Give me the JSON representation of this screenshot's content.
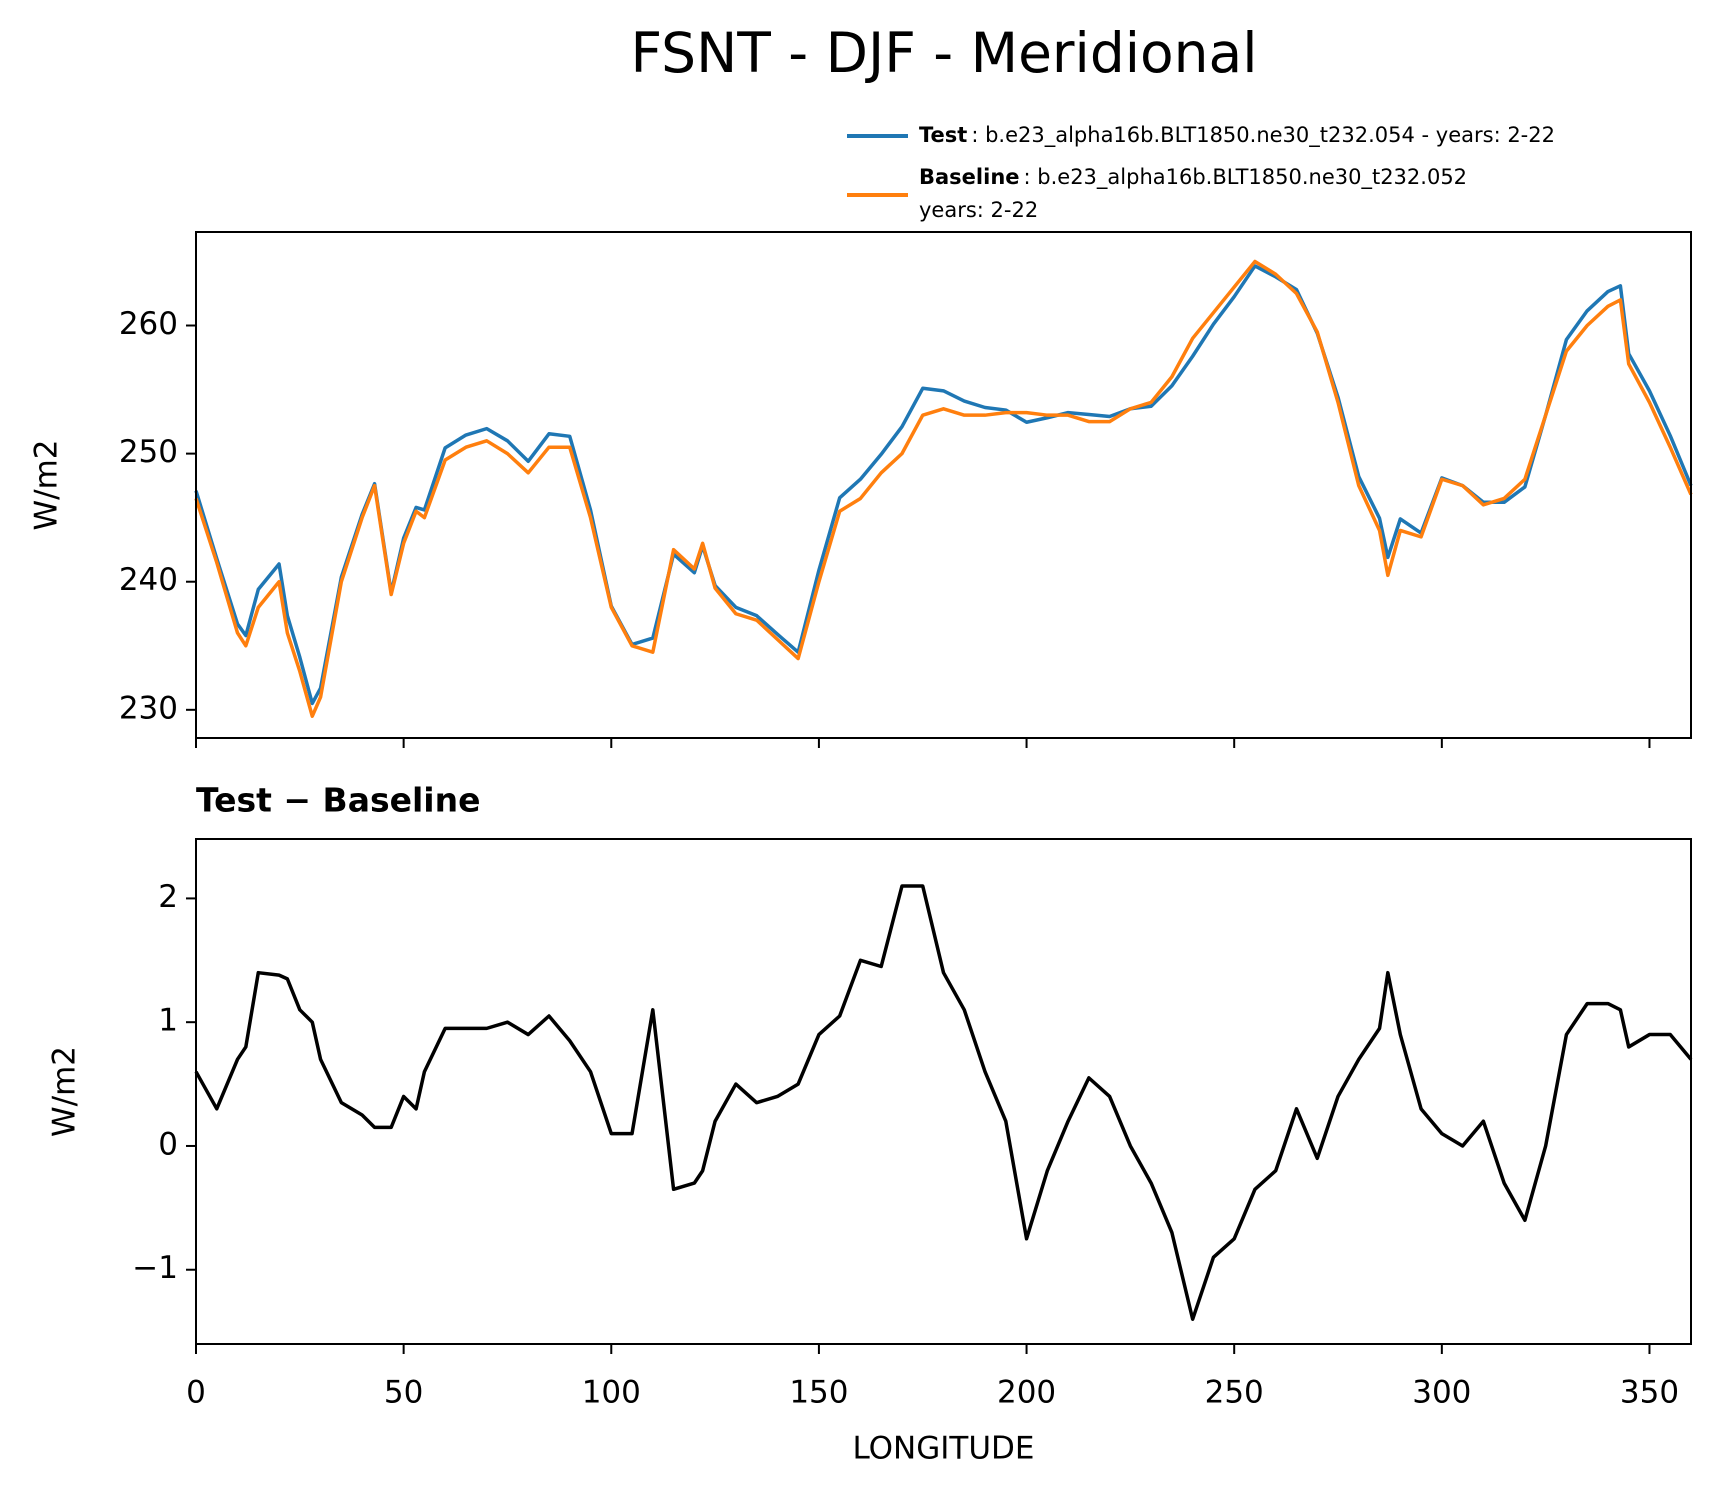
{
  "title": "FSNT - DJF - Meridional",
  "chart_data": [
    {
      "type": "line",
      "ylabel": "W/m2",
      "x": [
        0,
        5,
        10,
        12,
        15,
        20,
        22,
        25,
        28,
        30,
        35,
        40,
        43,
        47,
        50,
        53,
        55,
        60,
        65,
        70,
        75,
        80,
        85,
        90,
        95,
        100,
        105,
        110,
        115,
        120,
        122,
        125,
        130,
        135,
        140,
        145,
        150,
        155,
        160,
        165,
        170,
        175,
        180,
        185,
        190,
        195,
        200,
        205,
        210,
        215,
        220,
        225,
        230,
        235,
        240,
        245,
        250,
        255,
        260,
        265,
        270,
        275,
        280,
        285,
        287,
        290,
        295,
        300,
        305,
        310,
        315,
        320,
        325,
        330,
        335,
        340,
        343,
        345,
        350,
        355,
        360
      ],
      "series": [
        {
          "name": "Test",
          "legend_text": [
            ": b.e23_alpha16b.BLT1850.ne30_t232.054 - years: 2-22"
          ],
          "color": "#1f77b4",
          "values": [
            247.1,
            241.8,
            236.7,
            235.8,
            239.4,
            241.38,
            237.35,
            234.1,
            230.5,
            231.7,
            240.35,
            245.25,
            247.65,
            239.15,
            243.4,
            245.8,
            245.6,
            250.45,
            251.45,
            251.95,
            251.0,
            249.4,
            251.55,
            251.35,
            245.6,
            238.1,
            235.1,
            235.6,
            242.15,
            240.7,
            242.8,
            239.7,
            238.0,
            237.35,
            235.9,
            234.5,
            240.9,
            246.55,
            248.0,
            249.95,
            252.1,
            255.1,
            254.9,
            254.1,
            253.6,
            253.4,
            252.45,
            252.8,
            253.2,
            253.05,
            252.9,
            253.5,
            253.7,
            255.3,
            257.6,
            260.1,
            262.25,
            264.65,
            263.8,
            262.8,
            259.4,
            254.4,
            248.2,
            244.95,
            241.9,
            244.9,
            243.8,
            248.1,
            247.5,
            246.2,
            246.2,
            247.4,
            253.0,
            258.9,
            261.15,
            262.65,
            263.1,
            257.8,
            254.9,
            251.4,
            247.5
          ]
        },
        {
          "name": "Baseline",
          "legend_text": [
            ": b.e23_alpha16b.BLT1850.ne30_t232.052",
            "years: 2-22"
          ],
          "color": "#ff7f0e",
          "values": [
            246.5,
            241.5,
            236,
            235,
            238,
            240,
            236,
            233,
            229.5,
            231,
            240,
            245,
            247.5,
            239,
            243,
            245.5,
            245,
            249.5,
            250.5,
            251,
            250,
            248.5,
            250.5,
            250.5,
            245,
            238,
            235,
            234.5,
            242.5,
            241,
            243,
            239.5,
            237.5,
            237,
            235.5,
            234,
            240,
            245.5,
            246.5,
            248.5,
            250,
            253,
            253.5,
            253,
            253,
            253.2,
            253.2,
            253,
            253,
            252.5,
            252.5,
            253.5,
            254,
            256,
            259,
            261,
            263,
            265,
            264,
            262.5,
            259.5,
            254,
            247.5,
            244,
            240.5,
            244,
            243.5,
            248,
            247.5,
            246,
            246.5,
            248,
            253,
            258,
            260,
            261.5,
            262,
            257,
            254,
            250.5,
            246.8
          ]
        }
      ],
      "xlim": [
        0,
        360
      ],
      "xticks": [
        0,
        50,
        100,
        150,
        200,
        250,
        300,
        350
      ],
      "show_xtick_labels": false,
      "ylim": [
        227.8,
        267.3
      ],
      "yticks": [
        230,
        240,
        250,
        260
      ],
      "grid": false,
      "legend": "above right"
    },
    {
      "type": "line",
      "title": "Test − Baseline",
      "ylabel": "W/m2",
      "xlabel": "LONGITUDE",
      "x": [
        0,
        5,
        10,
        12,
        15,
        20,
        22,
        25,
        28,
        30,
        35,
        40,
        43,
        47,
        50,
        53,
        55,
        60,
        65,
        70,
        75,
        80,
        85,
        90,
        95,
        100,
        105,
        110,
        115,
        120,
        122,
        125,
        130,
        135,
        140,
        145,
        150,
        155,
        160,
        165,
        170,
        175,
        180,
        185,
        190,
        195,
        200,
        205,
        210,
        215,
        220,
        225,
        230,
        235,
        240,
        245,
        250,
        255,
        260,
        265,
        270,
        275,
        280,
        285,
        287,
        290,
        295,
        300,
        305,
        310,
        315,
        320,
        325,
        330,
        335,
        340,
        343,
        345,
        350,
        355,
        360
      ],
      "series": [
        {
          "color": "#000000",
          "values": [
            0.6,
            0.3,
            0.7,
            0.8,
            1.4,
            1.38,
            1.35,
            1.1,
            1.0,
            0.7,
            0.35,
            0.25,
            0.15,
            0.15,
            0.4,
            0.3,
            0.6,
            0.95,
            0.95,
            0.95,
            1.0,
            0.9,
            1.05,
            0.85,
            0.6,
            0.1,
            0.1,
            1.1,
            -0.35,
            -0.3,
            -0.2,
            0.2,
            0.5,
            0.35,
            0.4,
            0.5,
            0.9,
            1.05,
            1.5,
            1.45,
            2.1,
            2.1,
            1.4,
            1.1,
            0.6,
            0.2,
            -0.75,
            -0.2,
            0.2,
            0.55,
            0.4,
            0.0,
            -0.3,
            -0.7,
            -1.4,
            -0.9,
            -0.75,
            -0.35,
            -0.2,
            0.3,
            -0.1,
            0.4,
            0.7,
            0.95,
            1.4,
            0.9,
            0.3,
            0.1,
            0.0,
            0.2,
            -0.3,
            -0.6,
            0.0,
            0.9,
            1.15,
            1.15,
            1.1,
            0.8,
            0.9,
            0.9,
            0.7
          ]
        }
      ],
      "xlim": [
        0,
        360
      ],
      "xticks": [
        0,
        50,
        100,
        150,
        200,
        250,
        300,
        350
      ],
      "show_xtick_labels": true,
      "ylim": [
        -1.6,
        2.48
      ],
      "yticks": [
        {
          "value": -1,
          "label": "−1"
        },
        0,
        1,
        2
      ],
      "grid": false
    }
  ]
}
